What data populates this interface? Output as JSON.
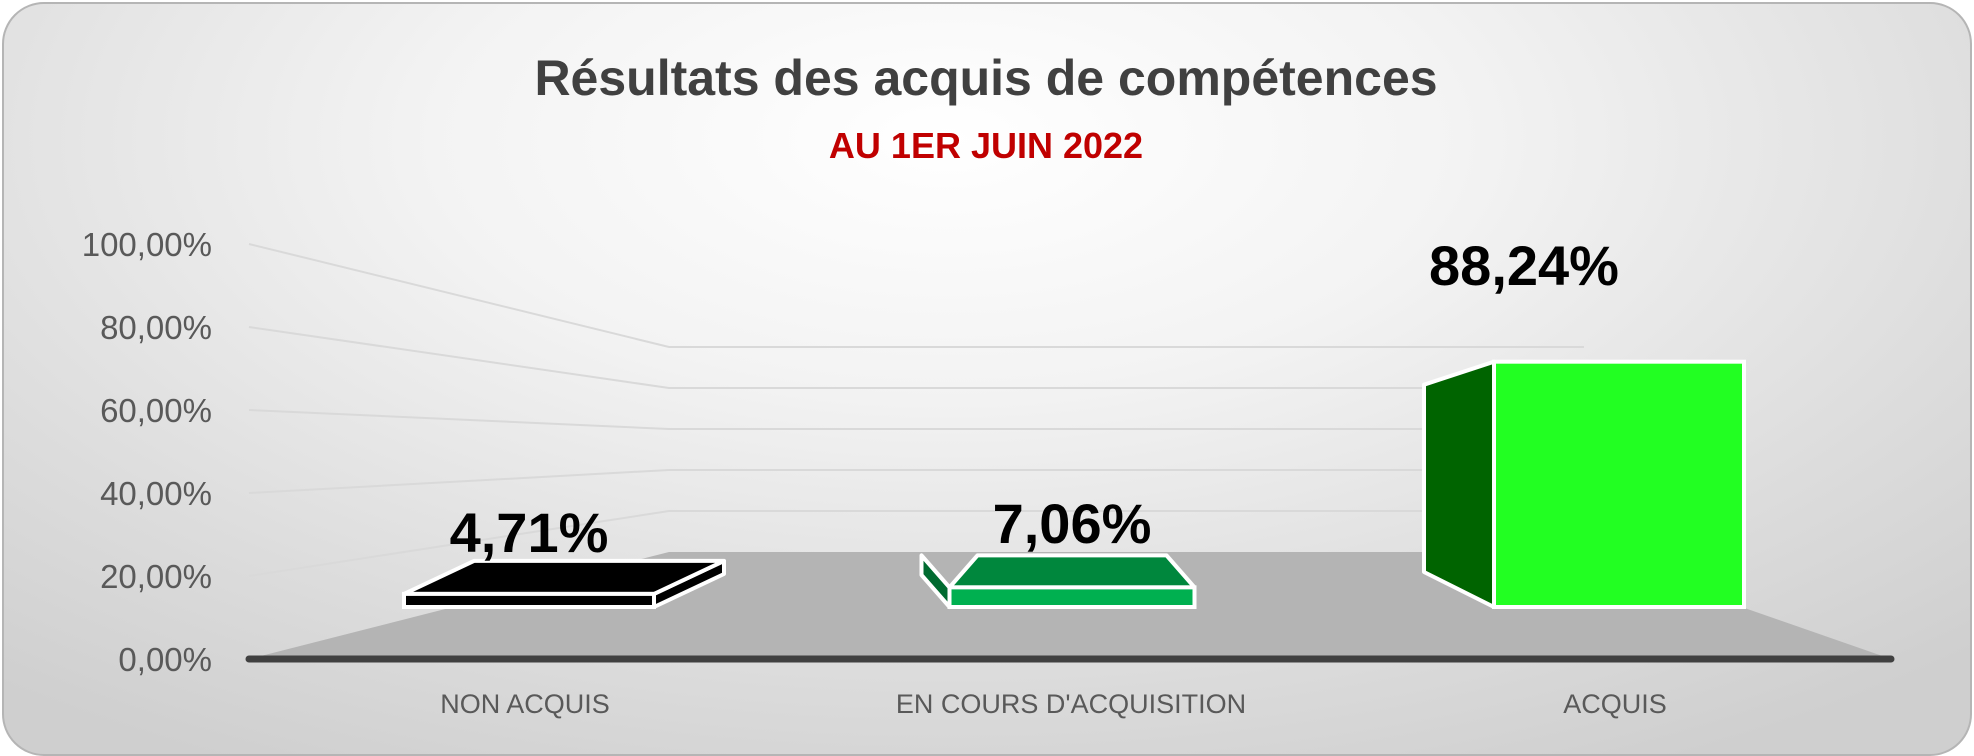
{
  "chart_data": {
    "type": "bar",
    "title": "Résultats des acquis de compétences",
    "subtitle": "AU 1ER JUIN 2022",
    "categories": [
      "NON ACQUIS",
      "EN COURS D'ACQUISITION",
      "ACQUIS"
    ],
    "values": [
      4.71,
      7.06,
      88.24
    ],
    "data_labels": [
      "4,71%",
      "7,06%",
      "88,24%"
    ],
    "yticks": [
      "0,00%",
      "20,00%",
      "40,00%",
      "60,00%",
      "80,00%",
      "100,00%"
    ],
    "ytick_values": [
      0,
      20,
      40,
      60,
      80,
      100
    ],
    "ylim": [
      0,
      100
    ],
    "xlabel": "",
    "ylabel": "",
    "grid": true,
    "legend": false,
    "style": "3d",
    "bar_colors": [
      {
        "front": "#000000",
        "top": "#000000",
        "side": "#000000"
      },
      {
        "front": "#00b050",
        "top": "#00873d",
        "side": "#006b30"
      },
      {
        "front": "#22ff22",
        "top": "#22ff22",
        "side": "#006400"
      }
    ],
    "colors": {
      "title": "#404040",
      "subtitle": "#c00000",
      "axis_text": "#595959",
      "data_label": "#000000",
      "gridline": "#d9d9d9",
      "floor": "#b4b4b4",
      "baseline": "#404040"
    }
  }
}
